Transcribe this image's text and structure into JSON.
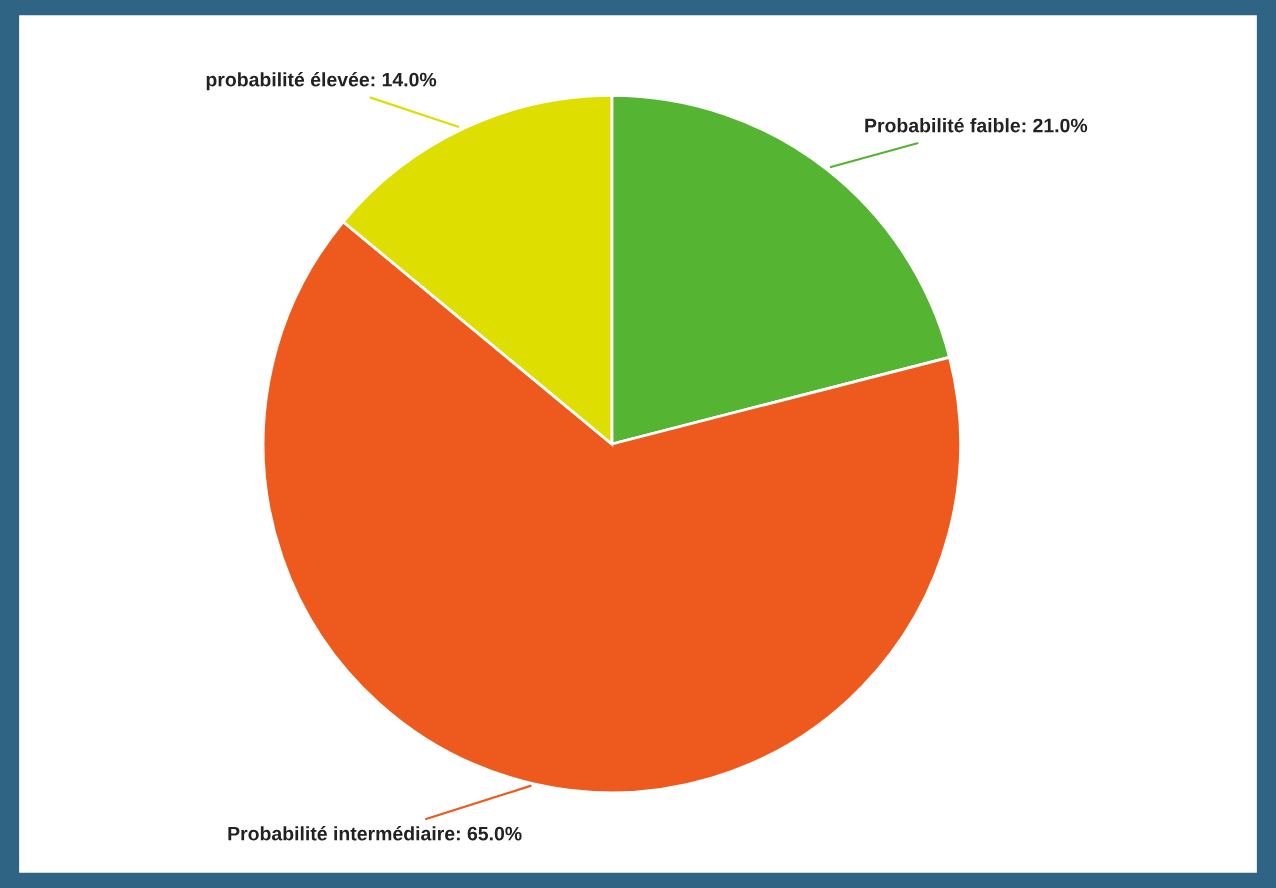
{
  "chart_data": {
    "type": "pie",
    "categories": [
      "Probabilité faible",
      "Probabilité intermédiaire",
      "probabilité élevée"
    ],
    "values": [
      21.0,
      65.0,
      14.0
    ],
    "value_labels": [
      "21.0%",
      "65.0%",
      "14.0%"
    ],
    "colors": [
      "#55b432",
      "#ee5a1e",
      "#dede00"
    ]
  }
}
